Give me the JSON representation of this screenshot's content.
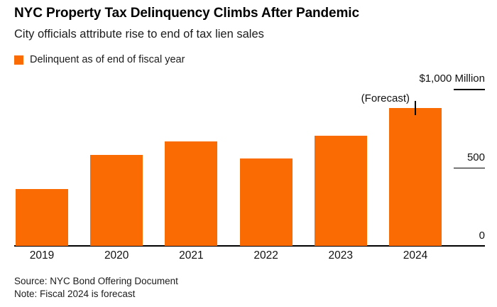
{
  "header": {
    "title": "NYC Property Tax Delinquency Climbs After Pandemic",
    "subtitle": "City officials attribute rise to end of tax lien sales"
  },
  "legend": {
    "label": "Delinquent as of end of fiscal year"
  },
  "annotation": {
    "text": "(Forecast)",
    "target_category": "2024"
  },
  "footer": {
    "source": "Source: NYC Bond Offering Document",
    "note": "Note: Fiscal 2024 is forecast"
  },
  "colors": {
    "bar": "#FB6B04",
    "axis": "#000000",
    "text": "#1c1c1c"
  },
  "chart_data": {
    "type": "bar",
    "title": "NYC Property Tax Delinquency Climbs After Pandemic",
    "subtitle": "City officials attribute rise to end of tax lien sales",
    "series_name": "Delinquent as of end of fiscal year",
    "unit": "$ Million",
    "categories": [
      "2019",
      "2020",
      "2021",
      "2022",
      "2023",
      "2024"
    ],
    "values": [
      360,
      580,
      665,
      555,
      700,
      880
    ],
    "ylim": [
      0,
      1000
    ],
    "yticks": [
      {
        "label": "$1,000 Million",
        "value": 1000,
        "line": true
      },
      {
        "label": "500",
        "value": 500,
        "line": true
      },
      {
        "label": "0",
        "value": 0,
        "line": false
      }
    ],
    "grid": false,
    "legend_position": "top-left",
    "annotations": [
      {
        "text": "(Forecast)",
        "category": "2024"
      }
    ]
  }
}
